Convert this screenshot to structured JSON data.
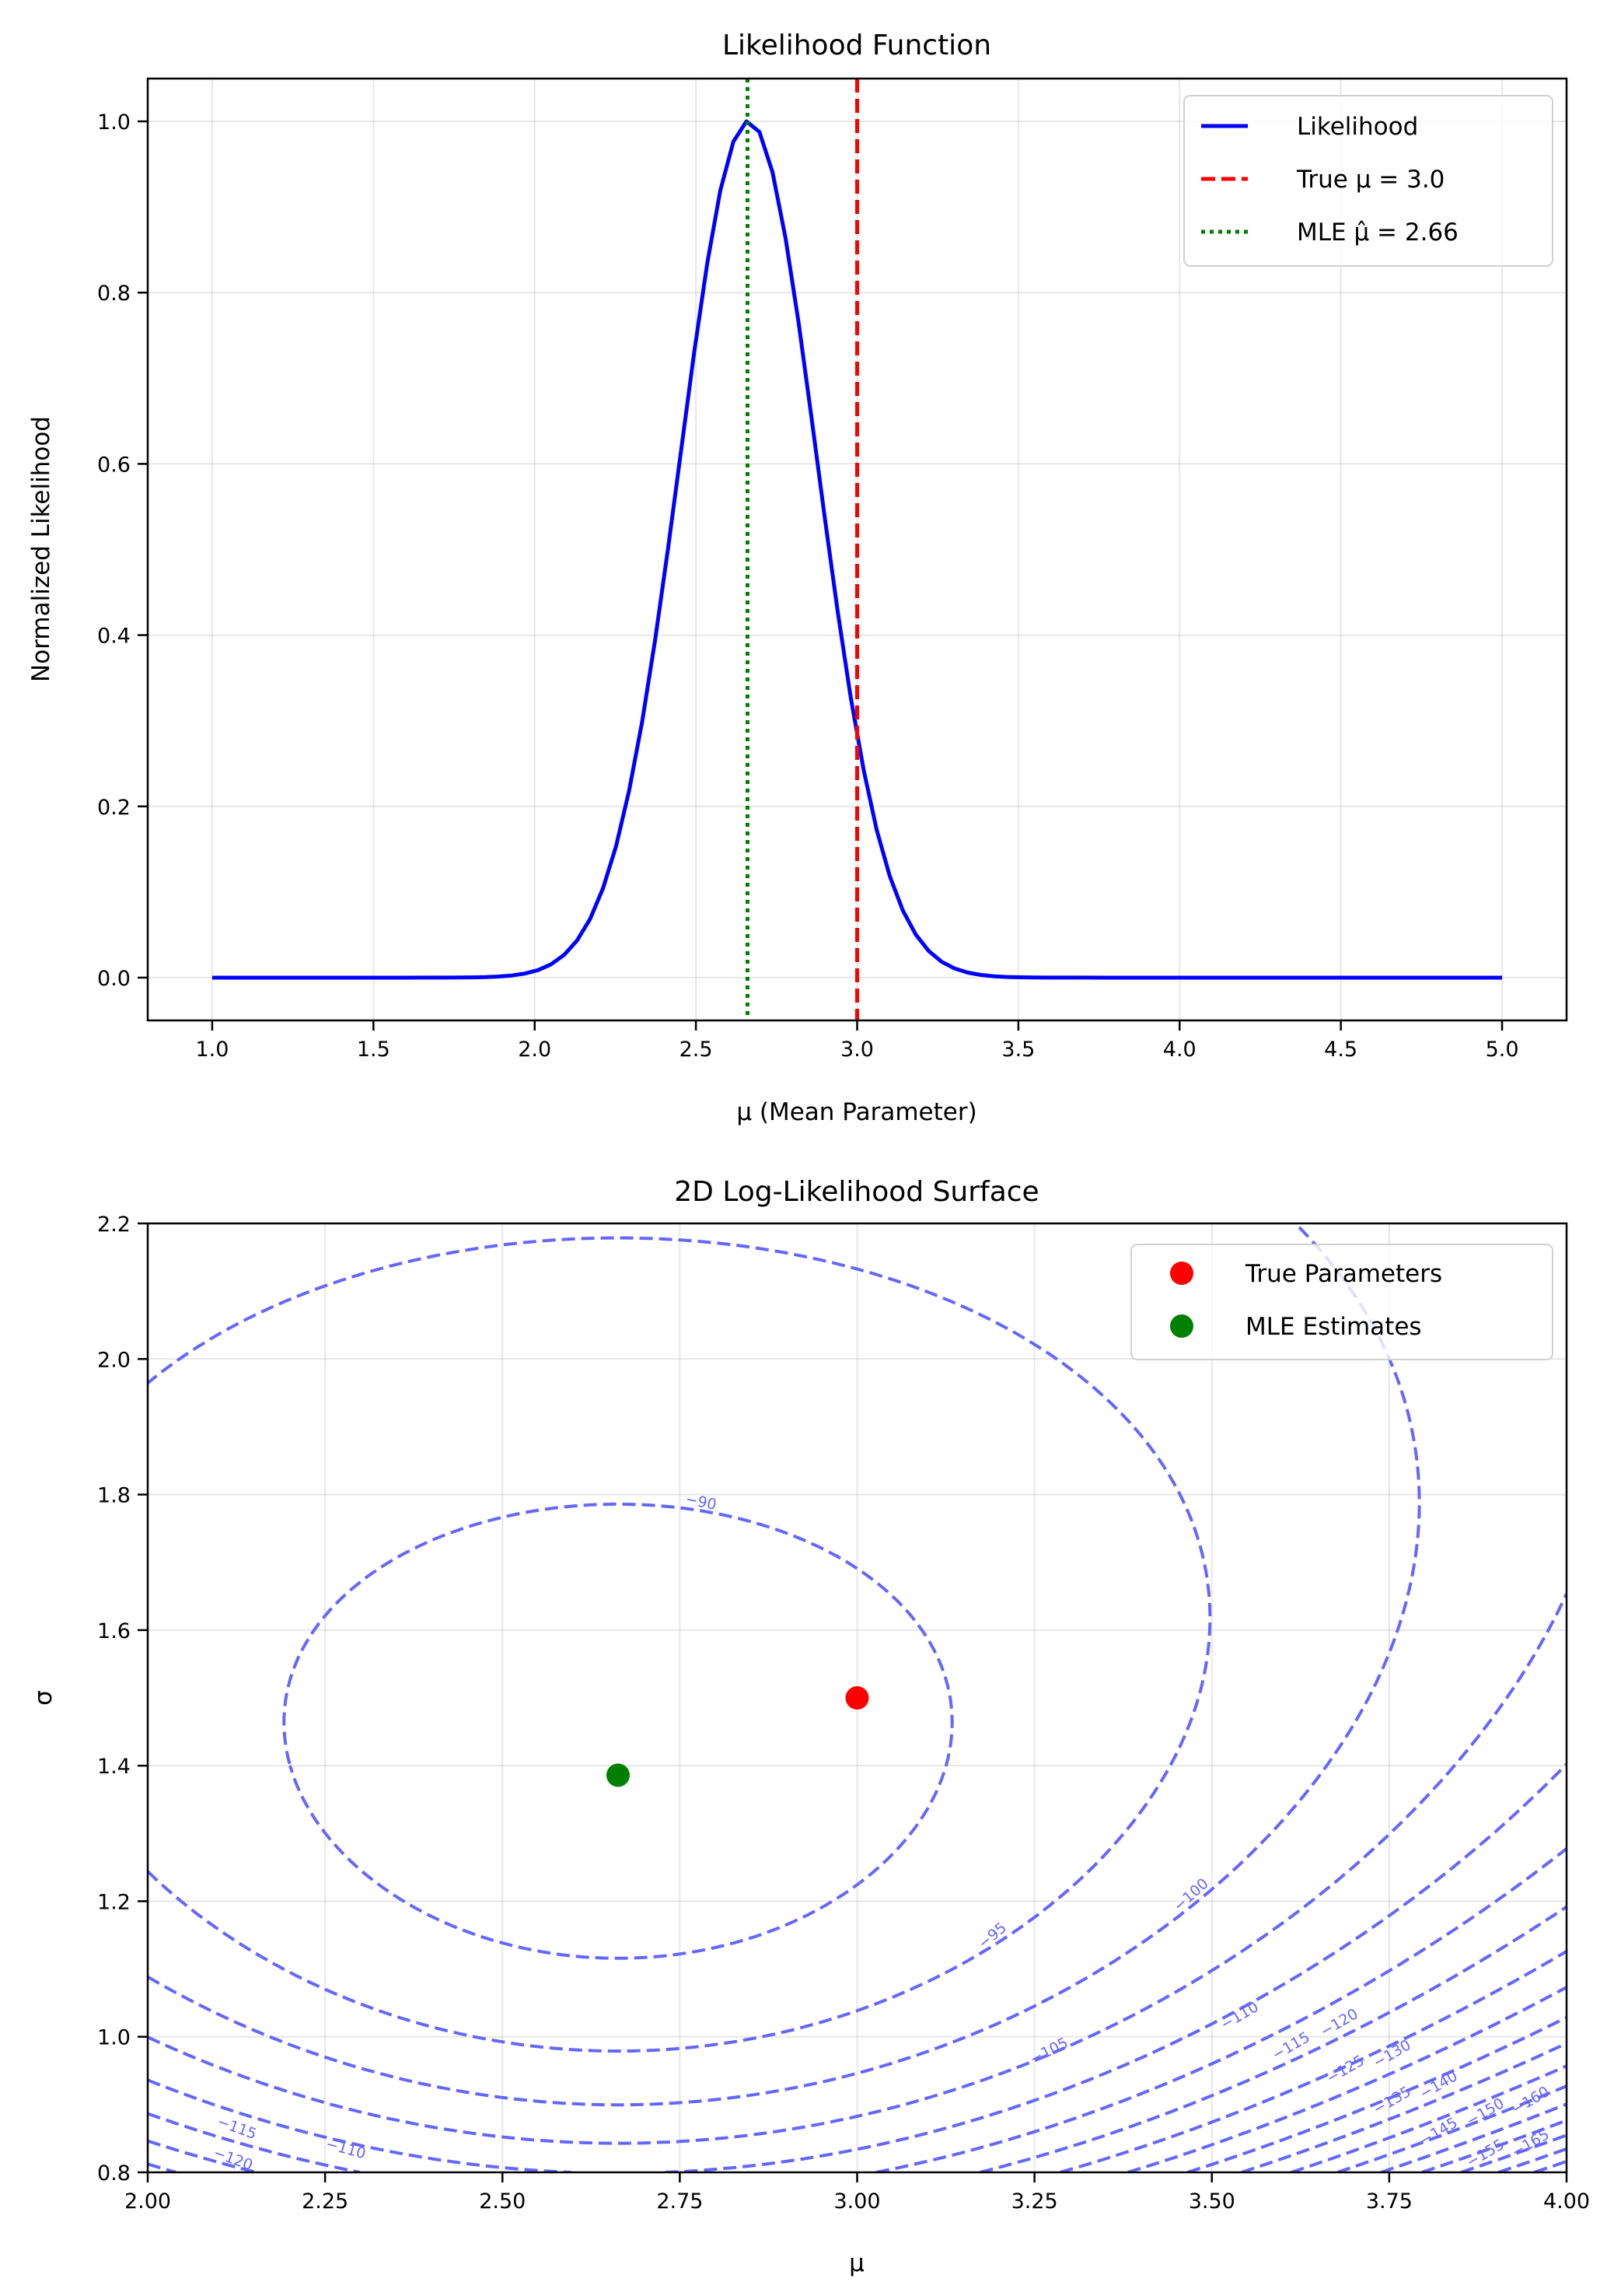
{
  "chart_data": [
    {
      "type": "line",
      "title": "Likelihood Function",
      "xlabel": "μ (Mean Parameter)",
      "ylabel": "Normalized Likelihood",
      "xlim": [
        0.8,
        5.2
      ],
      "ylim": [
        -0.05,
        1.05
      ],
      "xticks": [
        "1.0",
        "1.5",
        "2.0",
        "2.5",
        "3.0",
        "3.5",
        "4.0",
        "4.5",
        "5.0"
      ],
      "yticks": [
        "0.0",
        "0.2",
        "0.4",
        "0.6",
        "0.8",
        "1.0"
      ],
      "grid": true,
      "legend_position": "top-right",
      "series": [
        {
          "name": "Likelihood",
          "kind": "curve",
          "x_range": [
            1.0,
            5.0
          ],
          "peak_x": 2.66,
          "peak_y": 1.0,
          "sample_points": [
            [
              1.0,
              0.0
            ],
            [
              1.8,
              0.0
            ],
            [
              2.0,
              0.01
            ],
            [
              2.2,
              0.09
            ],
            [
              2.4,
              0.46
            ],
            [
              2.5,
              0.75
            ],
            [
              2.6,
              0.96
            ],
            [
              2.66,
              1.0
            ],
            [
              2.7,
              0.98
            ],
            [
              2.8,
              0.81
            ],
            [
              2.9,
              0.53
            ],
            [
              3.0,
              0.28
            ],
            [
              3.1,
              0.12
            ],
            [
              3.2,
              0.04
            ],
            [
              3.4,
              0.003
            ],
            [
              3.5,
              0.0
            ],
            [
              5.0,
              0.0
            ]
          ],
          "color": "#0000ff",
          "style": "solid"
        },
        {
          "name": "True μ = 3.0",
          "kind": "vline",
          "x": 3.0,
          "color": "#ff0000",
          "style": "dashed"
        },
        {
          "name": "MLE μ̂ = 2.66",
          "kind": "vline",
          "x": 2.66,
          "color": "#008000",
          "style": "dotted"
        }
      ]
    },
    {
      "type": "contour",
      "title": "2D Log-Likelihood Surface",
      "xlabel": "μ",
      "ylabel": "σ",
      "xlim": [
        2.0,
        4.0
      ],
      "ylim": [
        0.8,
        2.2
      ],
      "xticks": [
        "2.00",
        "2.25",
        "2.50",
        "2.75",
        "3.00",
        "3.25",
        "3.50",
        "3.75",
        "4.00"
      ],
      "yticks": [
        "0.8",
        "1.0",
        "1.2",
        "1.4",
        "1.6",
        "1.8",
        "2.0",
        "2.2"
      ],
      "grid": true,
      "legend_position": "top-right",
      "contour_color": "#6666ff",
      "contour_style": "dashed",
      "levels": [
        -90,
        -95,
        -100,
        -105,
        -110,
        -115,
        -120,
        -125,
        -130,
        -135,
        -140,
        -145,
        -150,
        -155,
        -160,
        -165,
        -170,
        -175
      ],
      "contour_labels": [
        "−90",
        "−95",
        "−100",
        "−105",
        "−110",
        "−115",
        "−120",
        "−125",
        "−130",
        "−135",
        "−140",
        "−145",
        "−150",
        "−155",
        "−160",
        "−165",
        "−115",
        "−110",
        "−120"
      ],
      "points": [
        {
          "name": "True Parameters",
          "mu": 3.0,
          "sigma": 1.5,
          "color": "#ff0000"
        },
        {
          "name": "MLE Estimates",
          "mu": 2.663,
          "sigma": 1.386,
          "color": "#008000"
        }
      ]
    }
  ]
}
